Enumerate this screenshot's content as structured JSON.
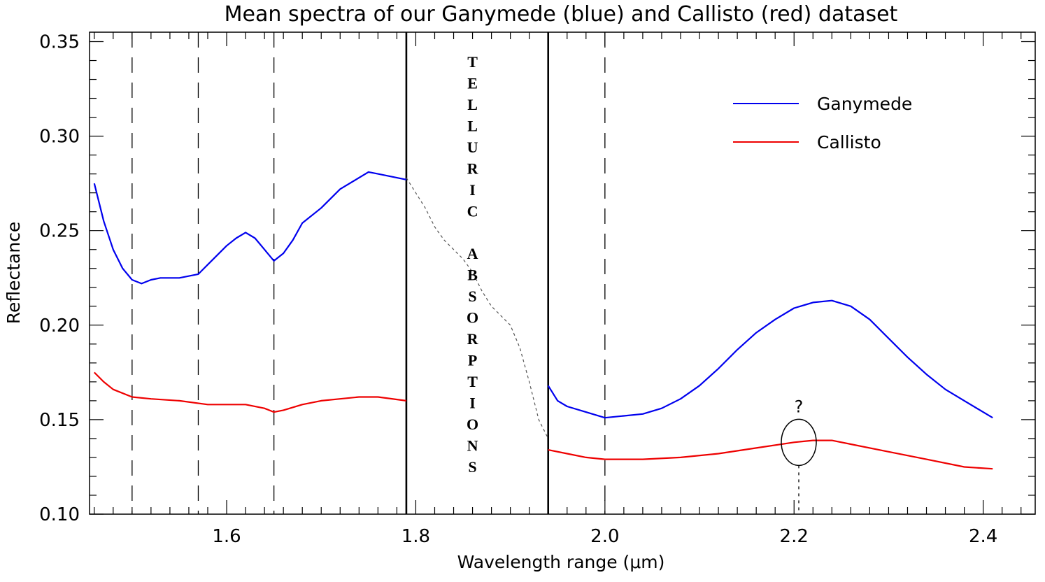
{
  "chart_data": {
    "type": "line",
    "title": "Mean spectra of our Ganymede (blue) and Callisto (red) dataset",
    "xlabel": "Wavelength range (μm)",
    "ylabel": "Reflectance",
    "xlim": [
      1.455,
      2.455
    ],
    "ylim": [
      0.1,
      0.355
    ],
    "x_ticks": [
      1.6,
      1.8,
      2.0,
      2.2,
      2.4
    ],
    "x_tick_labels": [
      "1.6",
      "1.8",
      "2.0",
      "2.2",
      "2.4"
    ],
    "y_ticks": [
      0.1,
      0.15,
      0.2,
      0.25,
      0.3,
      0.35
    ],
    "y_tick_labels": [
      "0.10",
      "0.15",
      "0.20",
      "0.25",
      "0.30",
      "0.35"
    ],
    "grid": false,
    "legend_position": "top-right",
    "series": [
      {
        "name": "Ganymede",
        "color": "#0000ee",
        "x": [
          1.46,
          1.47,
          1.48,
          1.49,
          1.5,
          1.51,
          1.52,
          1.53,
          1.55,
          1.57,
          1.58,
          1.6,
          1.61,
          1.62,
          1.63,
          1.64,
          1.65,
          1.66,
          1.67,
          1.68,
          1.7,
          1.72,
          1.74,
          1.75,
          1.76,
          1.77,
          1.79,
          1.94,
          1.95,
          1.96,
          1.98,
          2.0,
          2.02,
          2.04,
          2.06,
          2.08,
          2.1,
          2.12,
          2.14,
          2.16,
          2.18,
          2.2,
          2.22,
          2.24,
          2.26,
          2.28,
          2.3,
          2.32,
          2.34,
          2.36,
          2.38,
          2.4,
          2.41
        ],
        "y": [
          0.275,
          0.255,
          0.24,
          0.23,
          0.224,
          0.222,
          0.224,
          0.225,
          0.225,
          0.227,
          0.232,
          0.242,
          0.246,
          0.249,
          0.246,
          0.24,
          0.234,
          0.238,
          0.245,
          0.254,
          0.262,
          0.272,
          0.278,
          0.281,
          0.28,
          0.279,
          0.277,
          0.168,
          0.16,
          0.157,
          0.154,
          0.151,
          0.152,
          0.153,
          0.156,
          0.161,
          0.168,
          0.177,
          0.187,
          0.196,
          0.203,
          0.209,
          0.212,
          0.213,
          0.21,
          0.203,
          0.193,
          0.183,
          0.174,
          0.166,
          0.16,
          0.154,
          0.151
        ]
      },
      {
        "name": "Callisto",
        "color": "#ee0000",
        "x": [
          1.46,
          1.47,
          1.48,
          1.5,
          1.52,
          1.55,
          1.58,
          1.6,
          1.62,
          1.64,
          1.65,
          1.66,
          1.68,
          1.7,
          1.72,
          1.74,
          1.76,
          1.79,
          1.94,
          1.96,
          1.98,
          2.0,
          2.04,
          2.08,
          2.12,
          2.16,
          2.2,
          2.22,
          2.24,
          2.26,
          2.3,
          2.34,
          2.38,
          2.41
        ],
        "y": [
          0.175,
          0.17,
          0.166,
          0.162,
          0.161,
          0.16,
          0.158,
          0.158,
          0.158,
          0.156,
          0.154,
          0.155,
          0.158,
          0.16,
          0.161,
          0.162,
          0.162,
          0.16,
          0.134,
          0.132,
          0.13,
          0.129,
          0.129,
          0.13,
          0.132,
          0.135,
          0.138,
          0.139,
          0.139,
          0.137,
          0.133,
          0.129,
          0.125,
          0.124
        ]
      },
      {
        "name": "",
        "color": "#555555",
        "style": "dotted",
        "x": [
          1.79,
          1.8,
          1.81,
          1.82,
          1.83,
          1.84,
          1.85,
          1.86,
          1.87,
          1.88,
          1.89,
          1.9,
          1.91,
          1.92,
          1.93,
          1.94
        ],
        "y": [
          0.278,
          0.27,
          0.262,
          0.252,
          0.245,
          0.24,
          0.235,
          0.228,
          0.218,
          0.21,
          0.205,
          0.2,
          0.188,
          0.17,
          0.15,
          0.14
        ]
      }
    ],
    "reference_lines": {
      "dashed_x": [
        1.5,
        1.57,
        1.65,
        2.0
      ],
      "solid_x": [
        1.79,
        1.94
      ]
    },
    "annotations": [
      {
        "text": "TELLURIC ABSORPTIONS",
        "orientation": "vertical"
      },
      {
        "text": "?",
        "x": 2.205,
        "y": 0.145
      }
    ],
    "marker_ellipse": {
      "x": 2.205,
      "y": 0.138
    }
  }
}
